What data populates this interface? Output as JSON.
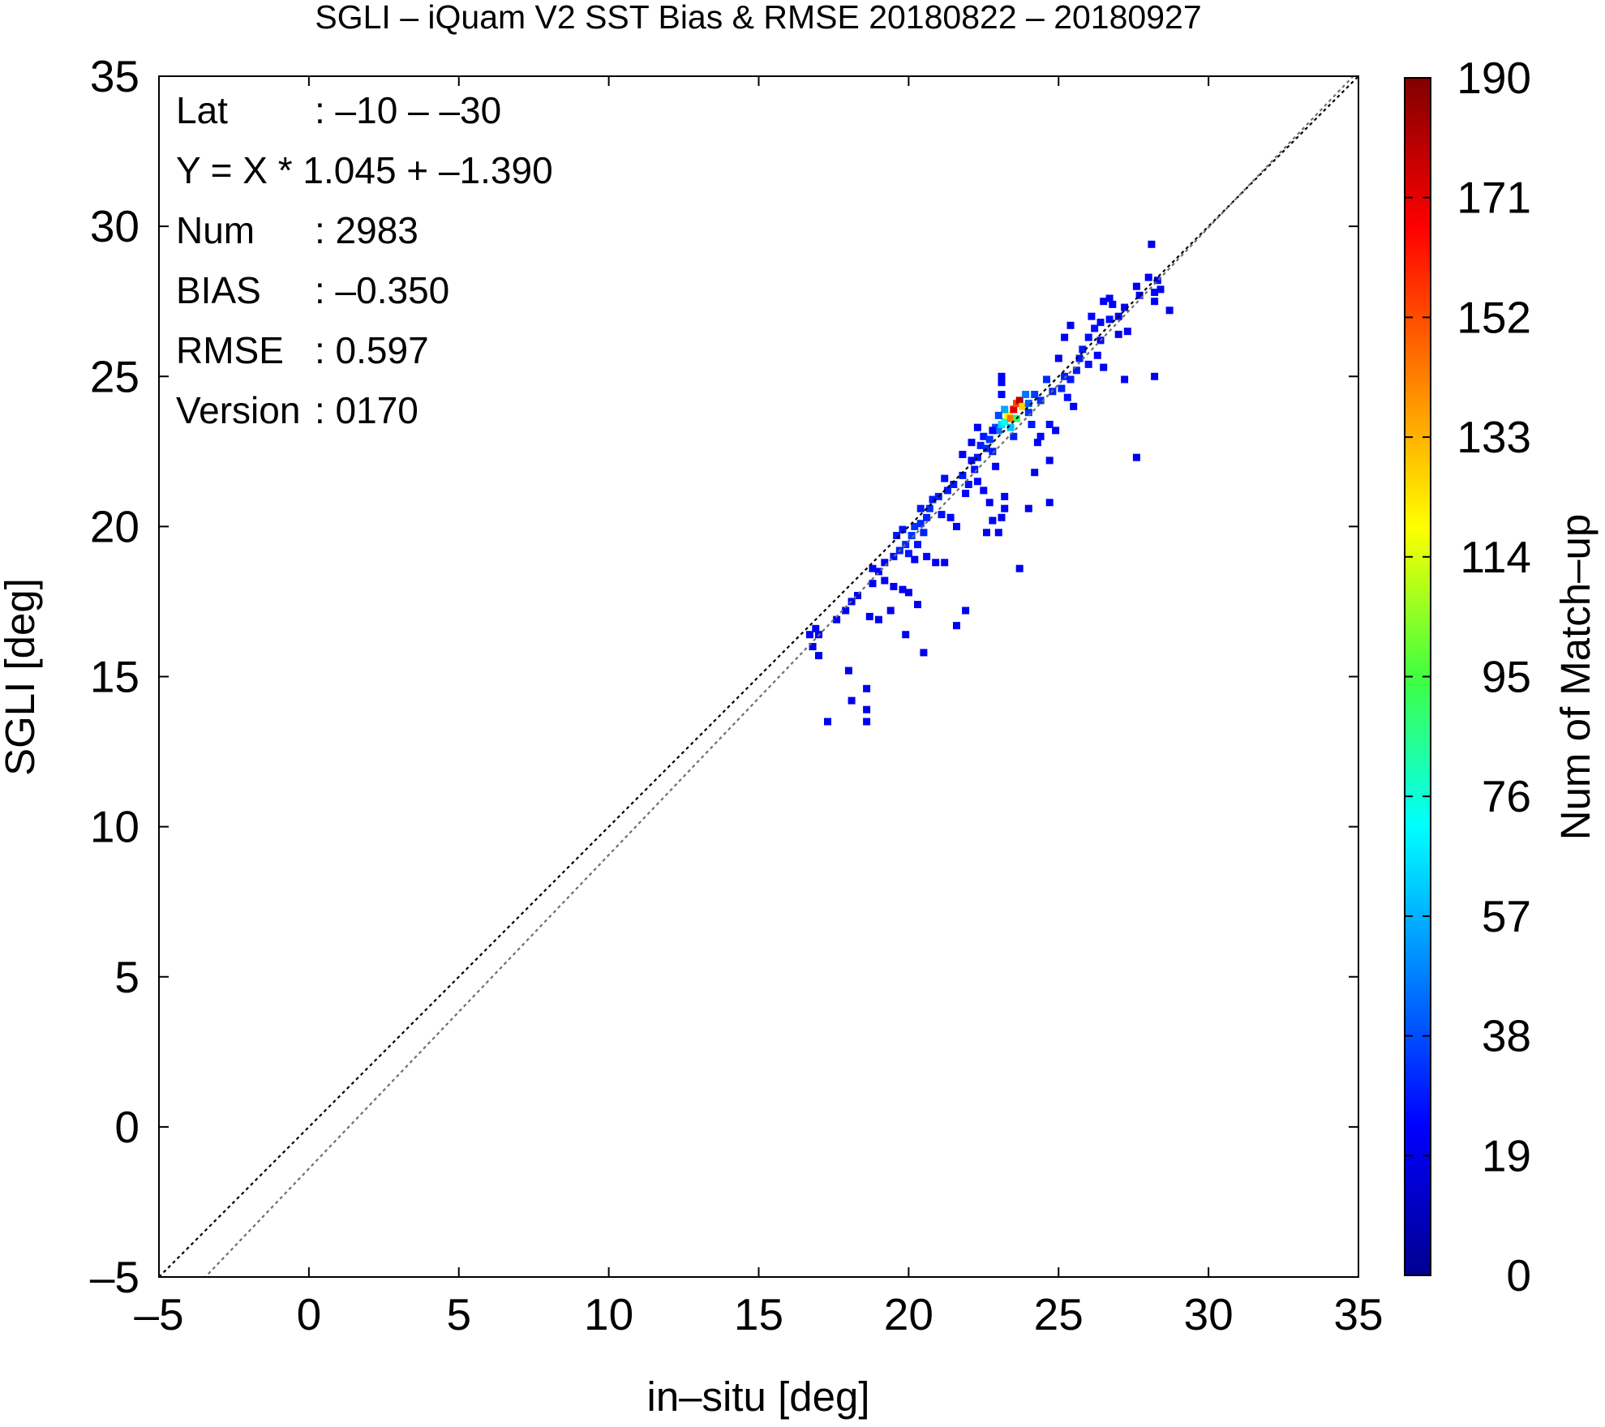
{
  "chart_data": {
    "type": "heatmap",
    "title": "SGLI – iQuam V2 SST Bias & RMSE 20180822 – 20180927",
    "xlabel": "in–situ [deg]",
    "ylabel": "SGLI [deg]",
    "xlim": [
      -5,
      35
    ],
    "ylim": [
      -5,
      35
    ],
    "x_ticks": [
      "–5",
      "0",
      "5",
      "10",
      "15",
      "20",
      "25",
      "30",
      "35"
    ],
    "y_ticks": [
      "–5",
      "0",
      "5",
      "10",
      "15",
      "20",
      "25",
      "30",
      "35"
    ],
    "colorbar": {
      "label": "Num of Match–up",
      "range": [
        0,
        190
      ],
      "ticks": [
        "0",
        "19",
        "38",
        "57",
        "76",
        "95",
        "114",
        "133",
        "152",
        "171",
        "190"
      ]
    },
    "stats": [
      {
        "key": "Lat",
        "value": ": –10 – –30"
      },
      {
        "key": "Y = X * 1.045 + –1.390",
        "value": ""
      },
      {
        "key": "Num",
        "value": ": 2983"
      },
      {
        "key": "BIAS",
        "value": ": –0.350"
      },
      {
        "key": "RMSE",
        "value": ": 0.597"
      },
      {
        "key": "Version",
        "value": ": 0170"
      }
    ],
    "reference_lines": [
      {
        "name": "1:1",
        "slope": 1,
        "intercept": 0,
        "color": "#000000"
      },
      {
        "name": "regression",
        "slope": 1.045,
        "intercept": -1.39,
        "color": "#6e6e6e"
      }
    ],
    "cells": [
      [
        16.7,
        16.4,
        3
      ],
      [
        17.0,
        16.4,
        4
      ],
      [
        16.9,
        16.6,
        3
      ],
      [
        16.8,
        16.0,
        2
      ],
      [
        17.0,
        15.7,
        2
      ],
      [
        17.3,
        13.5,
        2
      ],
      [
        17.6,
        16.9,
        2
      ],
      [
        17.9,
        17.2,
        2
      ],
      [
        18.1,
        17.5,
        3
      ],
      [
        18.3,
        17.7,
        2
      ],
      [
        18.0,
        15.2,
        2
      ],
      [
        18.1,
        14.2,
        2
      ],
      [
        18.6,
        14.6,
        2
      ],
      [
        18.6,
        13.9,
        2
      ],
      [
        18.6,
        13.5,
        2
      ],
      [
        18.8,
        18.1,
        3
      ],
      [
        18.7,
        17.0,
        2
      ],
      [
        18.8,
        18.6,
        3
      ],
      [
        19.0,
        18.5,
        4
      ],
      [
        19.2,
        18.8,
        4
      ],
      [
        19.2,
        18.2,
        2
      ],
      [
        19.4,
        17.2,
        2
      ],
      [
        19.5,
        18.0,
        2
      ],
      [
        19.8,
        17.9,
        2
      ],
      [
        20.0,
        17.8,
        2
      ],
      [
        20.3,
        17.4,
        2
      ],
      [
        19.0,
        16.9,
        2
      ],
      [
        19.9,
        16.4,
        2
      ],
      [
        20.5,
        15.8,
        2
      ],
      [
        21.6,
        16.7,
        2
      ],
      [
        21.9,
        17.2,
        2
      ],
      [
        19.5,
        19.0,
        8
      ],
      [
        19.7,
        19.2,
        12
      ],
      [
        19.9,
        19.4,
        14
      ],
      [
        19.6,
        19.7,
        10
      ],
      [
        19.8,
        19.9,
        9
      ],
      [
        20.1,
        19.7,
        16
      ],
      [
        20.0,
        19.1,
        10
      ],
      [
        20.2,
        20.0,
        16
      ],
      [
        20.4,
        20.1,
        14
      ],
      [
        20.3,
        19.4,
        9
      ],
      [
        20.5,
        19.8,
        12
      ],
      [
        20.6,
        20.3,
        12
      ],
      [
        20.4,
        20.6,
        10
      ],
      [
        20.7,
        20.6,
        14
      ],
      [
        20.8,
        20.9,
        10
      ],
      [
        20.6,
        19.0,
        6
      ],
      [
        20.9,
        18.8,
        5
      ],
      [
        21.2,
        18.8,
        4
      ],
      [
        20.2,
        18.9,
        4
      ],
      [
        21.0,
        21.0,
        12
      ],
      [
        21.1,
        20.4,
        8
      ],
      [
        21.3,
        21.2,
        10
      ],
      [
        21.2,
        21.6,
        8
      ],
      [
        21.5,
        21.4,
        10
      ],
      [
        21.4,
        20.3,
        6
      ],
      [
        21.6,
        20.0,
        4
      ],
      [
        21.8,
        21.7,
        10
      ],
      [
        21.9,
        21.1,
        6
      ],
      [
        22.0,
        21.4,
        8
      ],
      [
        22.2,
        21.9,
        8
      ],
      [
        22.3,
        21.5,
        6
      ],
      [
        21.8,
        22.4,
        3
      ],
      [
        22.1,
        22.2,
        6
      ],
      [
        22.5,
        21.2,
        4
      ],
      [
        22.8,
        20.2,
        3
      ],
      [
        22.6,
        19.8,
        3
      ],
      [
        23.0,
        19.8,
        3
      ],
      [
        23.2,
        20.6,
        3
      ],
      [
        22.7,
        20.8,
        3
      ],
      [
        23.2,
        21.0,
        3
      ],
      [
        23.1,
        20.3,
        3
      ],
      [
        23.7,
        18.6,
        2
      ],
      [
        24.0,
        20.6,
        2
      ],
      [
        24.7,
        20.8,
        2
      ],
      [
        22.3,
        22.3,
        10
      ],
      [
        22.4,
        22.7,
        12
      ],
      [
        22.6,
        22.6,
        14
      ],
      [
        22.5,
        23.0,
        10
      ],
      [
        22.7,
        22.9,
        16
      ],
      [
        22.9,
        23.3,
        20
      ],
      [
        22.8,
        22.5,
        10
      ],
      [
        22.3,
        23.3,
        3
      ],
      [
        22.1,
        22.8,
        4
      ],
      [
        23.0,
        23.2,
        30
      ],
      [
        23.1,
        23.4,
        50
      ],
      [
        23.2,
        23.5,
        60
      ],
      [
        23.3,
        23.7,
        110
      ],
      [
        23.4,
        23.6,
        140
      ],
      [
        23.5,
        23.9,
        170
      ],
      [
        23.6,
        24.1,
        150
      ],
      [
        23.7,
        24.2,
        180
      ],
      [
        23.8,
        24.0,
        120
      ],
      [
        23.6,
        23.6,
        80
      ],
      [
        23.2,
        23.9,
        40
      ],
      [
        23.4,
        23.3,
        45
      ],
      [
        23.0,
        23.7,
        20
      ],
      [
        23.9,
        24.4,
        30
      ],
      [
        24.0,
        24.1,
        25
      ],
      [
        23.5,
        23.0,
        12
      ],
      [
        23.1,
        24.4,
        6
      ],
      [
        23.1,
        24.8,
        6
      ],
      [
        23.1,
        25.0,
        4
      ],
      [
        22.8,
        23.2,
        6
      ],
      [
        22.9,
        22.0,
        4
      ],
      [
        24.0,
        23.8,
        16
      ],
      [
        24.2,
        24.4,
        18
      ],
      [
        24.4,
        24.2,
        14
      ],
      [
        24.1,
        23.4,
        10
      ],
      [
        24.6,
        24.9,
        14
      ],
      [
        24.8,
        24.5,
        12
      ],
      [
        24.7,
        23.4,
        8
      ],
      [
        24.4,
        23.0,
        6
      ],
      [
        24.9,
        23.2,
        4
      ],
      [
        25.1,
        24.6,
        12
      ],
      [
        25.2,
        25.0,
        12
      ],
      [
        25.3,
        24.3,
        8
      ],
      [
        25.6,
        25.2,
        10
      ],
      [
        25.7,
        25.6,
        10
      ],
      [
        25.4,
        24.9,
        10
      ],
      [
        25.8,
        25.9,
        10
      ],
      [
        26.0,
        25.4,
        8
      ],
      [
        25.5,
        24.0,
        4
      ],
      [
        24.3,
        22.8,
        3
      ],
      [
        24.7,
        22.2,
        2
      ],
      [
        24.2,
        21.8,
        2
      ],
      [
        25.2,
        26.3,
        3
      ],
      [
        25.0,
        25.6,
        3
      ],
      [
        25.4,
        26.7,
        2
      ],
      [
        26.0,
        26.3,
        8
      ],
      [
        26.2,
        26.6,
        8
      ],
      [
        26.4,
        26.2,
        6
      ],
      [
        26.1,
        27.0,
        6
      ],
      [
        26.4,
        26.8,
        6
      ],
      [
        26.3,
        25.7,
        6
      ],
      [
        26.5,
        25.3,
        4
      ],
      [
        26.7,
        26.9,
        8
      ],
      [
        26.8,
        27.4,
        4
      ],
      [
        27.0,
        27.0,
        6
      ],
      [
        27.2,
        27.3,
        4
      ],
      [
        27.0,
        26.4,
        3
      ],
      [
        27.3,
        26.5,
        3
      ],
      [
        27.2,
        24.9,
        3
      ],
      [
        26.5,
        27.5,
        4
      ],
      [
        26.7,
        27.6,
        4
      ],
      [
        27.7,
        27.7,
        4
      ],
      [
        28.0,
        28.3,
        4
      ],
      [
        28.2,
        27.8,
        6
      ],
      [
        28.3,
        28.2,
        6
      ],
      [
        28.4,
        27.9,
        4
      ],
      [
        28.2,
        25.0,
        2
      ],
      [
        27.6,
        28.0,
        2
      ],
      [
        28.1,
        29.4,
        2
      ],
      [
        28.7,
        27.2,
        2
      ],
      [
        27.6,
        22.3,
        2
      ],
      [
        28.2,
        27.5,
        3
      ]
    ]
  }
}
